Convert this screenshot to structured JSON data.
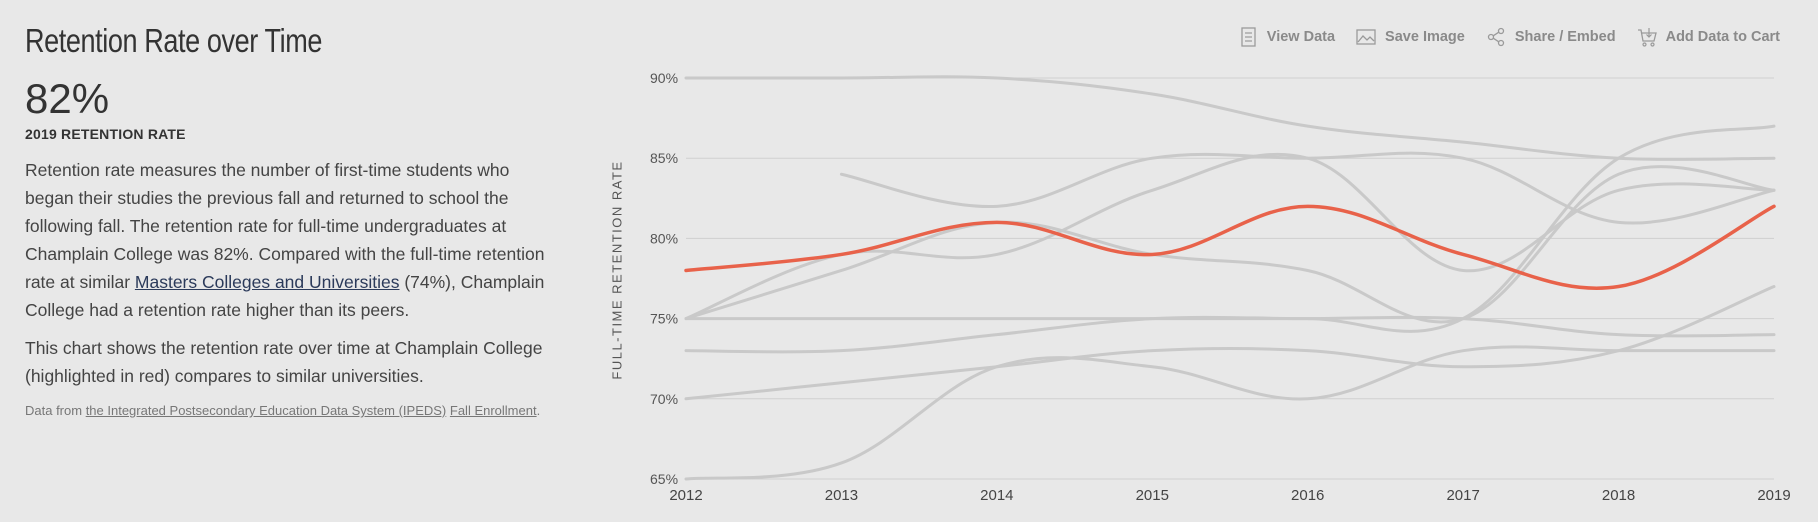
{
  "header": {
    "title": "Retention Rate over Time",
    "big_value": "82%",
    "big_value_label": "2019 RETENTION RATE"
  },
  "description": {
    "p1_before_link": "Retention rate measures the number of first-time students who began their studies the previous fall and returned to school the following fall. The retention rate for full-time undergraduates at Champlain College was 82%. Compared with the full-time retention rate at similar ",
    "p1_link": "Masters Colleges and Universities",
    "p1_after_link": " (74%), Champlain College had a retention rate higher than its peers.",
    "p2": "This chart shows the retention rate over time at Champlain College (highlighted in red) compares to similar universities."
  },
  "source": {
    "prefix": "Data from ",
    "link1": "the Integrated Postsecondary Education Data System (IPEDS)",
    "link2": "Fall Enrollment",
    "suffix": "."
  },
  "toolbar": {
    "view_data": "View Data",
    "save_image": "Save Image",
    "share_embed": "Share / Embed",
    "add_to_cart": "Add Data to Cart"
  },
  "chart_data": {
    "type": "line",
    "ylabel": "FULL-TIME RETENTION RATE",
    "xlabel": "",
    "x": [
      2012,
      2013,
      2014,
      2015,
      2016,
      2017,
      2018,
      2019
    ],
    "ylim": [
      65,
      90
    ],
    "yticks": [
      65,
      70,
      75,
      80,
      85,
      90
    ],
    "ytick_labels": [
      "65%",
      "70%",
      "75%",
      "80%",
      "85%",
      "90%"
    ],
    "grid": true,
    "colors": {
      "highlight": "#e8624a",
      "peer": "#c9c9c9",
      "grid": "#cfcfcf"
    },
    "highlight": {
      "values": [
        78,
        79,
        81,
        79,
        82,
        79,
        77,
        82
      ]
    },
    "peers": [
      {
        "values": [
          90,
          90,
          90,
          89,
          87,
          86,
          85,
          85
        ]
      },
      {
        "values": [
          null,
          84,
          82,
          85,
          85,
          85,
          81,
          83
        ]
      },
      {
        "values": [
          75,
          79,
          79,
          83,
          85,
          78,
          83,
          83
        ]
      },
      {
        "values": [
          75,
          78,
          81,
          79,
          78,
          75,
          84,
          83
        ]
      },
      {
        "values": [
          73,
          73,
          74,
          75,
          75,
          75,
          74,
          74
        ]
      },
      {
        "values": [
          70,
          71,
          72,
          73,
          73,
          72,
          73,
          77
        ]
      },
      {
        "values": [
          65,
          66,
          72,
          72,
          70,
          73,
          73,
          73
        ]
      },
      {
        "values": [
          75,
          75,
          75,
          75,
          75,
          75,
          85,
          87
        ]
      }
    ]
  }
}
